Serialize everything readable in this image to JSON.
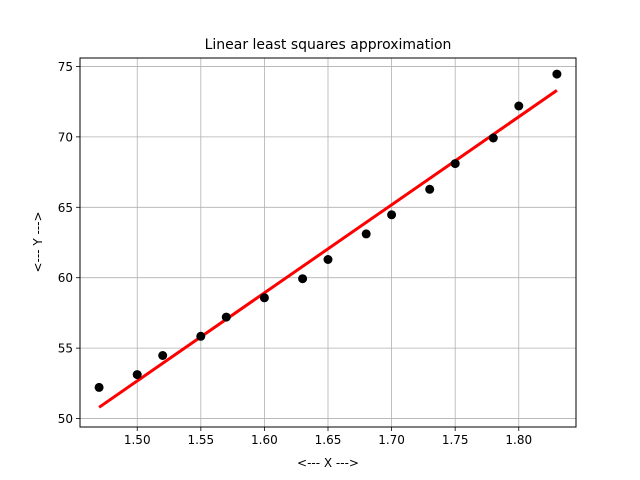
{
  "chart_data": {
    "type": "scatter",
    "title": "Linear least squares approximation",
    "xlabel": "<--- X --->",
    "ylabel": "<--- Y --->",
    "xlim": [
      1.455,
      1.845
    ],
    "ylim": [
      49.4,
      75.6
    ],
    "grid": true,
    "x_ticks": [
      1.5,
      1.55,
      1.6,
      1.65,
      1.7,
      1.75,
      1.8
    ],
    "x_tick_labels": [
      "1.50",
      "1.55",
      "1.60",
      "1.65",
      "1.70",
      "1.75",
      "1.80"
    ],
    "y_ticks": [
      50,
      55,
      60,
      65,
      70,
      75
    ],
    "y_tick_labels": [
      "50",
      "55",
      "60",
      "65",
      "70",
      "75"
    ],
    "series": [
      {
        "kind": "points",
        "color": "#000000",
        "x": [
          1.47,
          1.5,
          1.52,
          1.55,
          1.57,
          1.6,
          1.63,
          1.65,
          1.68,
          1.7,
          1.73,
          1.75,
          1.78,
          1.8,
          1.83
        ],
        "y": [
          52.21,
          53.12,
          54.48,
          55.84,
          57.2,
          58.57,
          59.93,
          61.29,
          63.11,
          64.47,
          66.28,
          68.1,
          69.92,
          72.19,
          74.46
        ]
      },
      {
        "kind": "line",
        "color": "#ff0000",
        "x": [
          1.47,
          1.83
        ],
        "y": [
          50.8,
          73.3
        ]
      }
    ]
  }
}
